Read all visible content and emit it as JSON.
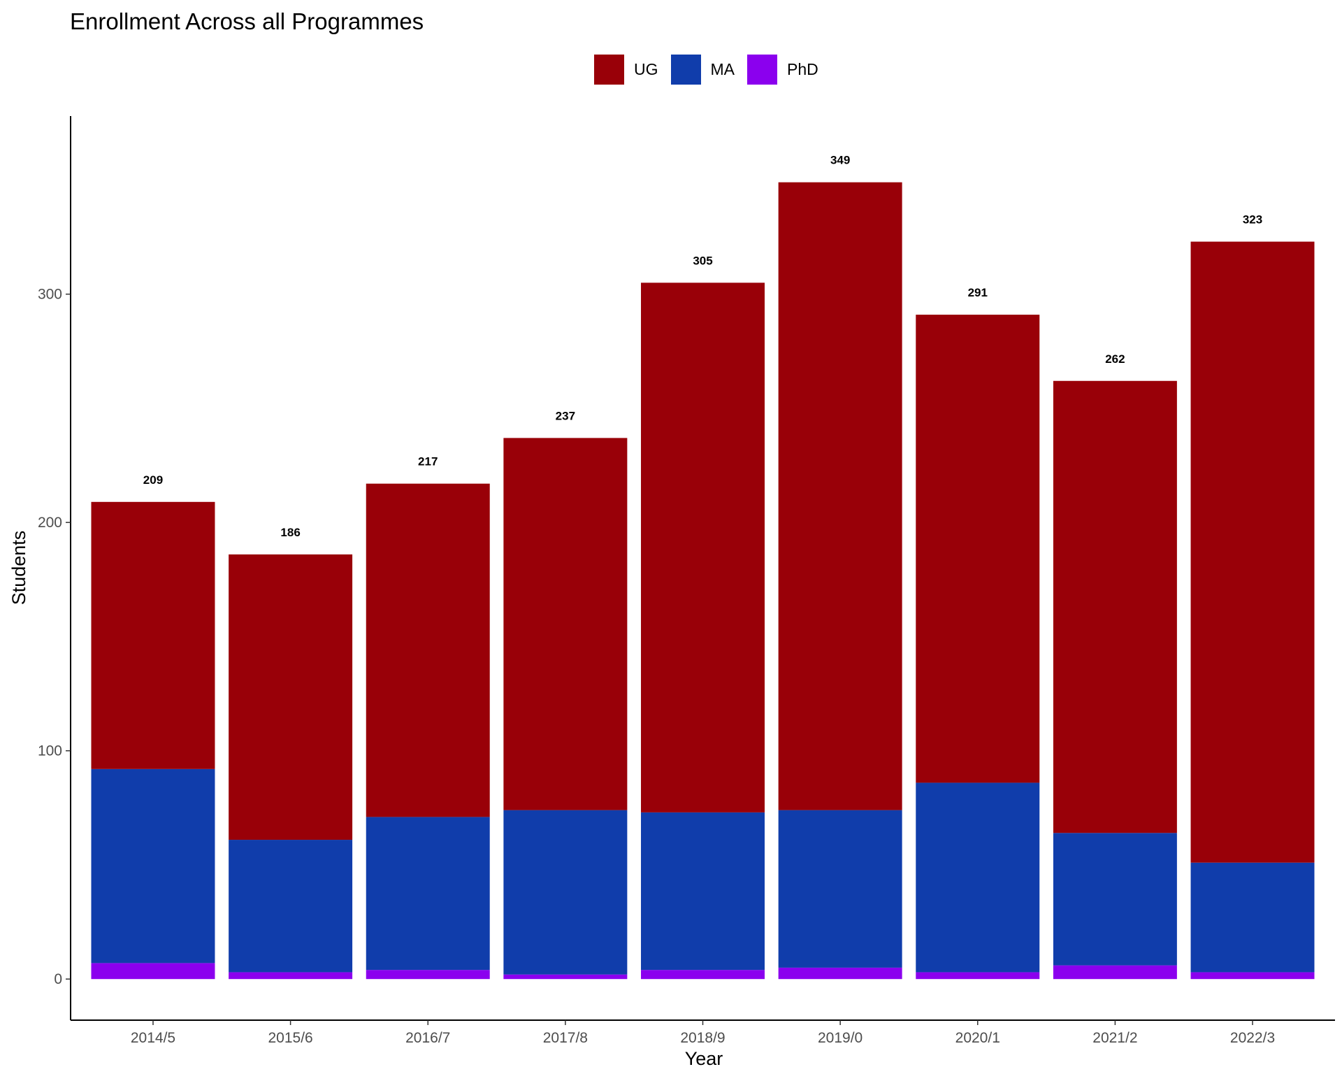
{
  "chart_data": {
    "type": "bar",
    "stacked": true,
    "title": "Enrollment Across all Programmes",
    "xlabel": "Year",
    "ylabel": "Students",
    "ylim": [
      -18,
      378
    ],
    "y_ticks": [
      0,
      100,
      200,
      300
    ],
    "y_tick_labels": [
      "0",
      "100",
      "200",
      "300"
    ],
    "grid": false,
    "legend_position": "top",
    "categories": [
      "2014/5",
      "2015/6",
      "2016/7",
      "2017/8",
      "2018/9",
      "2019/0",
      "2020/1",
      "2021/2",
      "2022/3"
    ],
    "series": [
      {
        "name": "UG",
        "color": "#990008",
        "values": [
          117,
          125,
          146,
          163,
          232,
          275,
          205,
          198,
          272
        ]
      },
      {
        "name": "MA",
        "color": "#103DAB",
        "values": [
          85,
          58,
          67,
          72,
          69,
          69,
          83,
          58,
          48
        ]
      },
      {
        "name": "PhD",
        "color": "#8B00EE",
        "values": [
          7,
          3,
          4,
          2,
          4,
          5,
          3,
          6,
          3
        ]
      }
    ],
    "totals": [
      "209",
      "186",
      "217",
      "237",
      "305",
      "349",
      "291",
      "262",
      "323"
    ]
  }
}
